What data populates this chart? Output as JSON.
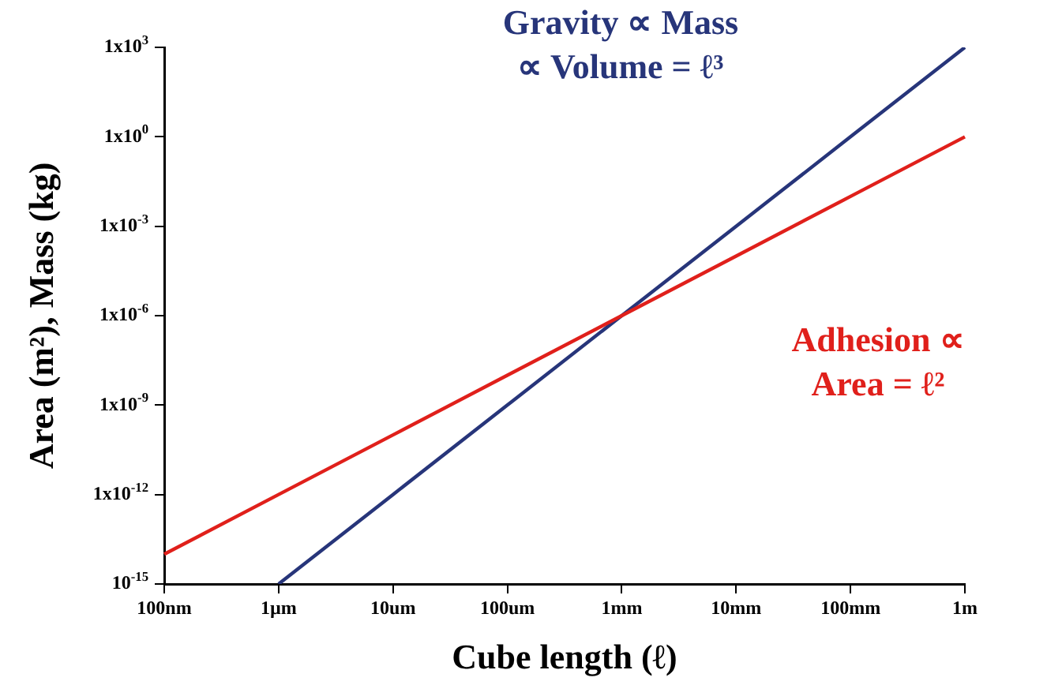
{
  "chart_data": {
    "type": "line",
    "xlabel": "Cube length (ℓ)",
    "ylabel": "Area (m²), Mass (kg)",
    "log": "y",
    "grid": false,
    "legend": false,
    "marker": "none",
    "line_style": "solid",
    "categories": [
      "100nm",
      "1µm",
      "10um",
      "100um",
      "1mm",
      "10mm",
      "100mm",
      "1m"
    ],
    "ylim": [
      1e-15,
      1000
    ],
    "yticks": [
      {
        "value": 1e-15,
        "label": "10$^{-15}$"
      },
      {
        "value": 1e-12,
        "label": "1x10$^{-12}$"
      },
      {
        "value": 1e-09,
        "label": "1x10$^{-9}$"
      },
      {
        "value": 1e-06,
        "label": "1x10$^{-6}$"
      },
      {
        "value": 0.001,
        "label": "1x10$^{-3}$"
      },
      {
        "value": 1,
        "label": "1x10$^{0}$"
      },
      {
        "value": 1000,
        "label": "1x10$^{3}$"
      }
    ],
    "series": [
      {
        "name": "Adhesion ∝ Area = ℓ²",
        "color": "#e0201b",
        "values": [
          1e-14,
          1e-12,
          1e-10,
          1e-08,
          1e-06,
          0.0001,
          0.01,
          1
        ]
      },
      {
        "name": "Gravity ∝ Mass ∝ Volume = ℓ³",
        "color": "#27357a",
        "values": [
          null,
          1e-15,
          1e-12,
          1e-09,
          1e-06,
          0.001,
          1,
          1000
        ]
      }
    ]
  }
}
